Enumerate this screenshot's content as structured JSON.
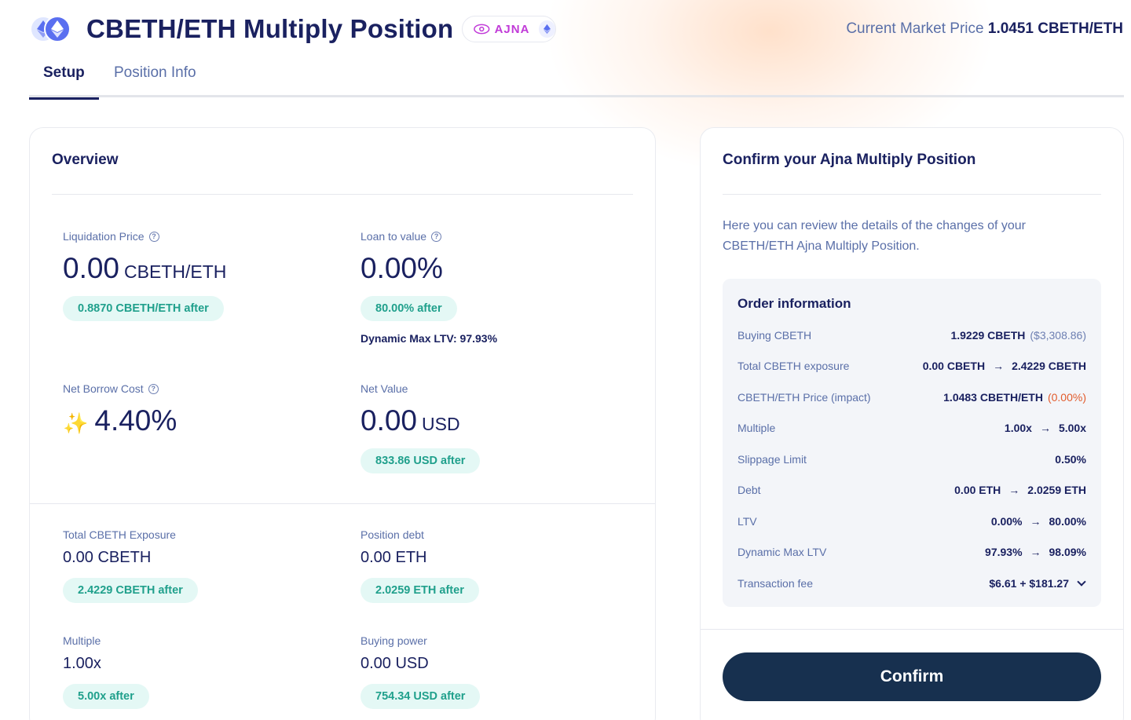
{
  "header": {
    "title": "CBETH/ETH Multiply Position",
    "protocol": "AJNA",
    "market_price_label": "Current Market Price",
    "market_price_value": "1.0451 CBETH/ETH"
  },
  "tabs": [
    {
      "label": "Setup",
      "active": true
    },
    {
      "label": "Position Info",
      "active": false
    }
  ],
  "overview": {
    "title": "Overview",
    "liquidation_price": {
      "label": "Liquidation Price",
      "value": "0.00",
      "unit": "CBETH/ETH",
      "after": "0.8870 CBETH/ETH after"
    },
    "loan_to_value": {
      "label": "Loan to value",
      "value": "0.00%",
      "after": "80.00% after",
      "note": "Dynamic Max LTV: 97.93%"
    },
    "net_borrow_cost": {
      "label": "Net Borrow Cost",
      "value": "4.40%"
    },
    "net_value": {
      "label": "Net Value",
      "value": "0.00",
      "unit": "USD",
      "after": "833.86 USD after"
    },
    "total_exposure": {
      "label": "Total CBETH Exposure",
      "value": "0.00 CBETH",
      "after": "2.4229 CBETH after"
    },
    "position_debt": {
      "label": "Position debt",
      "value": "0.00 ETH",
      "after": "2.0259 ETH after"
    },
    "multiple": {
      "label": "Multiple",
      "value": "1.00x",
      "after": "5.00x after"
    },
    "buying_power": {
      "label": "Buying power",
      "value": "0.00 USD",
      "after": "754.34 USD after"
    }
  },
  "confirm": {
    "title": "Confirm your Ajna Multiply Position",
    "description": "Here you can review the details of the changes of your CBETH/ETH Ajna Multiply Position.",
    "order_title": "Order information",
    "rows": {
      "buying": {
        "label": "Buying CBETH",
        "value": "1.9229 CBETH",
        "extra": "($3,308.86)"
      },
      "exposure": {
        "label": "Total CBETH exposure",
        "from": "0.00 CBETH",
        "to": "2.4229 CBETH"
      },
      "price": {
        "label": "CBETH/ETH Price (impact)",
        "value": "1.0483 CBETH/ETH",
        "impact": "(0.00%)"
      },
      "multiple": {
        "label": "Multiple",
        "from": "1.00x",
        "to": "5.00x"
      },
      "slippage": {
        "label": "Slippage Limit",
        "value": "0.50%"
      },
      "debt": {
        "label": "Debt",
        "from": "0.00 ETH",
        "to": "2.0259 ETH"
      },
      "ltv": {
        "label": "LTV",
        "from": "0.00%",
        "to": "80.00%"
      },
      "dyn_ltv": {
        "label": "Dynamic Max LTV",
        "from": "97.93%",
        "to": "98.09%"
      },
      "fee": {
        "label": "Transaction fee",
        "value": "$6.61 + $181.27"
      }
    },
    "arrow": "→",
    "button_label": "Confirm"
  },
  "icons": {
    "help": "?",
    "sparkle": "✨",
    "eth": "ethereum-icon"
  },
  "colors": {
    "primary": "#1a2160",
    "accent_green": "#20a08c",
    "ajna_purple": "#c13bd8",
    "button_dark": "#17304f",
    "impact_red": "#e25b2c"
  }
}
